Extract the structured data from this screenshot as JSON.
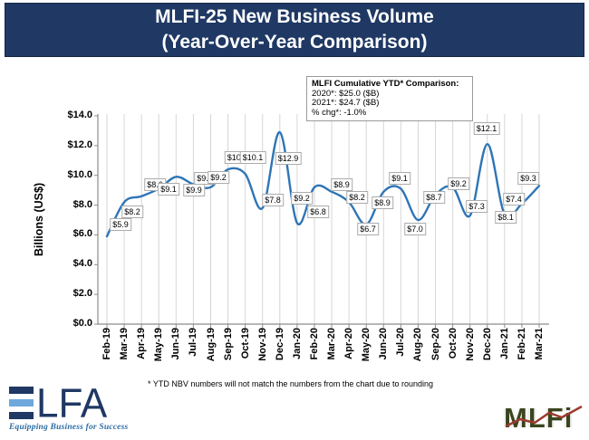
{
  "title": {
    "line1": "MLFI-25 New Business Volume",
    "line2": "(Year-Over-Year Comparison)"
  },
  "annotation": {
    "heading": "MLFI Cumulative YTD* Comparison:",
    "line_2020": "2020*: $25.0 ($B)",
    "line_2021": "2021*: $24.7 ($B)",
    "line_chg": "% chg*:  -1.0%"
  },
  "chart_data": {
    "type": "line",
    "title": "MLFI-25 New Business Volume (Year-Over-Year Comparison)",
    "xlabel": "",
    "ylabel": "Billions (US$)",
    "ylim": [
      0,
      14
    ],
    "ytick_labels": [
      "$14.0",
      "$12.0",
      "$10.0",
      "$8.0",
      "$6.0",
      "$4.0",
      "$2.0",
      "$0.0"
    ],
    "grid": "vertical-only",
    "legend": "none",
    "line_color": "#2E75B6",
    "categories": [
      "Feb-19",
      "Mar-19",
      "Apr-19",
      "May-19",
      "Jun-19",
      "Jul-19",
      "Aug-19",
      "Sep-19",
      "Oct-19",
      "Nov-19",
      "Dec-19",
      "Jan-20",
      "Feb-20",
      "Mar-20",
      "Apr-20",
      "May-20",
      "Jun-20",
      "Jul-20",
      "Aug-20",
      "Sep-20",
      "Oct-20",
      "Nov-20",
      "Dec-20",
      "Jan-21",
      "Feb-21",
      "Mar-21"
    ],
    "values": [
      5.9,
      8.2,
      8.6,
      9.1,
      9.9,
      9.4,
      9.2,
      10.4,
      10.1,
      7.8,
      12.9,
      6.8,
      9.2,
      8.9,
      8.2,
      6.7,
      8.9,
      9.1,
      7.0,
      8.7,
      9.2,
      7.3,
      12.1,
      7.4,
      8.1,
      9.3
    ],
    "point_labels": [
      "$5.9",
      "$8.2",
      "$8.6",
      "$9.1",
      "$9.9",
      "$9.4",
      "$9.2",
      "$10.4",
      "$10.1",
      "$7.8",
      "$12.9",
      "$6.8",
      "$9.2",
      "$8.9",
      "$8.2",
      "$6.7",
      "$8.9",
      "$9.1",
      "$7.0",
      "$8.7",
      "$9.2",
      "$7.3",
      "$12.1",
      "$7.4",
      "$8.1",
      "$9.3"
    ]
  },
  "footnote": "*  YTD NBV numbers will not match the numbers from the chart due to rounding",
  "logos": {
    "elfa": {
      "text": "LFA",
      "tagline": "Equipping Business for Success"
    },
    "mlfi": {
      "text": "MLFi"
    }
  },
  "colors": {
    "title_bar": "#1F3864",
    "line": "#2E75B6",
    "gridline": "#D6D6D6",
    "axis": "#8C8C8C",
    "elfa_navy": "#1F3864",
    "elfa_light_blue": "#6FA8DC",
    "elfa_tagline_blue": "#2E6DA4",
    "mlfi_green": "#3A451F",
    "mlfi_red": "#9C3A2E"
  }
}
